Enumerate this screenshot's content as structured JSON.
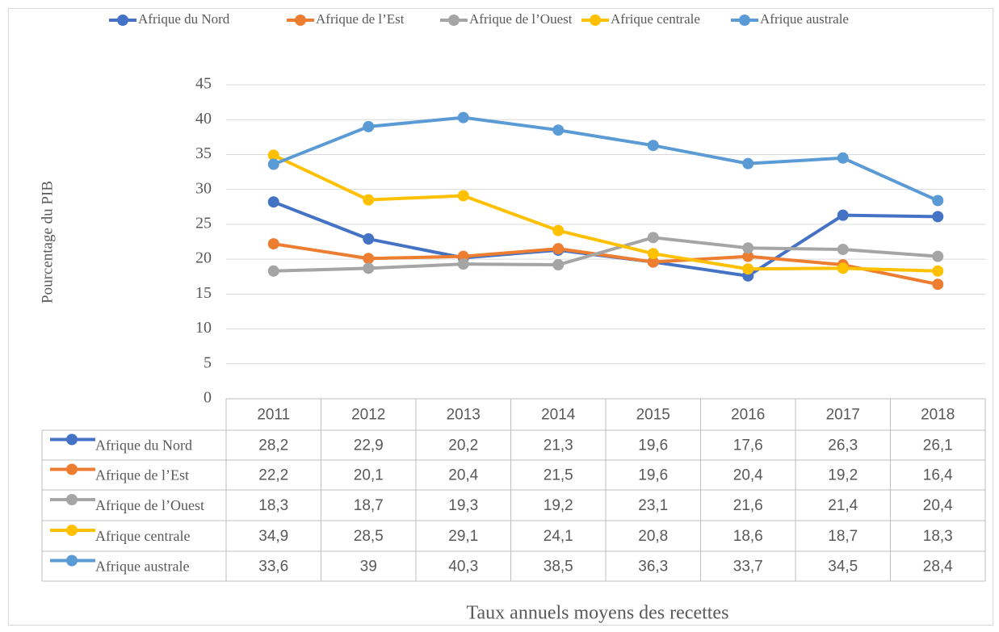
{
  "chart_data": {
    "type": "line",
    "y_label": "Pourcentage du PIB",
    "x_label": "Taux annuels moyens des recettes",
    "categories": [
      "2011",
      "2012",
      "2013",
      "2014",
      "2015",
      "2016",
      "2017",
      "2018"
    ],
    "ylim": [
      0,
      45
    ],
    "yticks": [
      0,
      5,
      10,
      15,
      20,
      25,
      30,
      35,
      40,
      45
    ],
    "grid": true,
    "legend": "top",
    "series": [
      {
        "name": "Afrique du Nord",
        "color": "#4472c4",
        "values": [
          28.2,
          22.9,
          20.2,
          21.3,
          19.6,
          17.6,
          26.3,
          26.1
        ],
        "value_labels": [
          "28,2",
          "22,9",
          "20,2",
          "21,3",
          "19,6",
          "17,6",
          "26,3",
          "26,1"
        ]
      },
      {
        "name": "Afrique de l’Est",
        "color": "#ed7d31",
        "values": [
          22.2,
          20.1,
          20.4,
          21.5,
          19.6,
          20.4,
          19.2,
          16.4
        ],
        "value_labels": [
          "22,2",
          "20,1",
          "20,4",
          "21,5",
          "19,6",
          "20,4",
          "19,2",
          "16,4"
        ]
      },
      {
        "name": "Afrique de l’Ouest",
        "color": "#a5a5a5",
        "values": [
          18.3,
          18.7,
          19.3,
          19.2,
          23.1,
          21.6,
          21.4,
          20.4
        ],
        "value_labels": [
          "18,3",
          "18,7",
          "19,3",
          "19,2",
          "23,1",
          "21,6",
          "21,4",
          "20,4"
        ]
      },
      {
        "name": "Afrique centrale",
        "color": "#ffc000",
        "values": [
          34.9,
          28.5,
          29.1,
          24.1,
          20.8,
          18.6,
          18.7,
          18.3
        ],
        "value_labels": [
          "34,9",
          "28,5",
          "29,1",
          "24,1",
          "20,8",
          "18,6",
          "18,7",
          "18,3"
        ]
      },
      {
        "name": "Afrique australe",
        "color": "#5b9bd5",
        "values": [
          33.6,
          39,
          40.3,
          38.5,
          36.3,
          33.7,
          34.5,
          28.4
        ],
        "value_labels": [
          "33,6",
          "39",
          "40,3",
          "38,5",
          "36,3",
          "33,7",
          "34,5",
          "28,4"
        ]
      }
    ]
  }
}
